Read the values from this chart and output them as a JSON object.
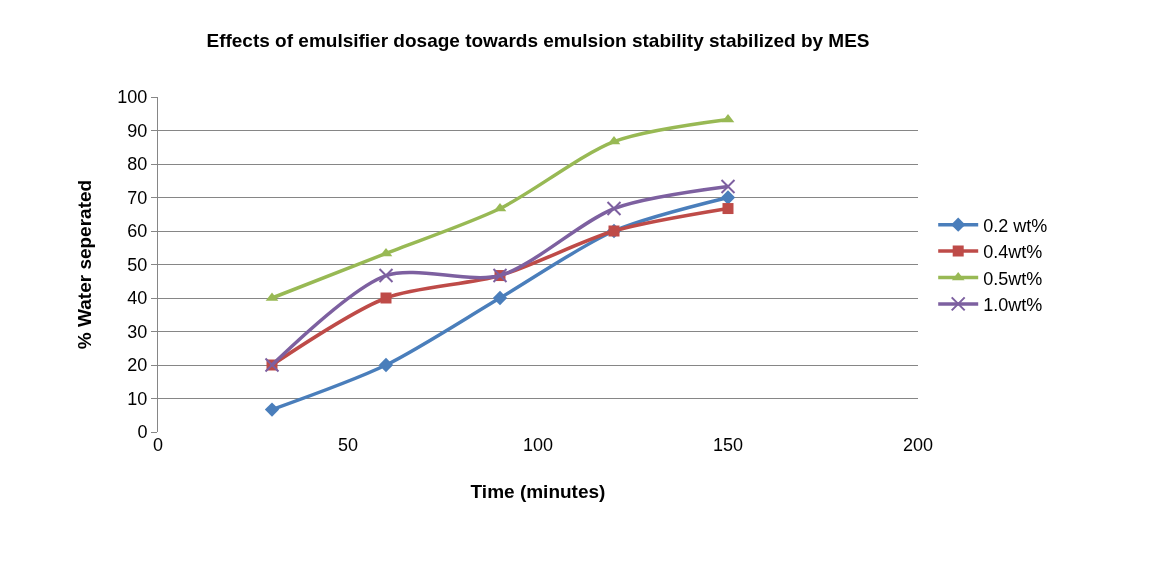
{
  "chart_data": {
    "type": "line",
    "title": "Effects of emulsifier dosage towards emulsion stability stabilized by MES",
    "xlabel": "Time (minutes)",
    "ylabel": "% Water seperated",
    "x": [
      30,
      60,
      90,
      120,
      150
    ],
    "series": [
      {
        "name": "0.2 wt%",
        "color": "#4a7ebb",
        "marker": "diamond",
        "values": [
          6.7,
          20,
          40,
          60,
          70
        ]
      },
      {
        "name": "0.4wt%",
        "color": "#be4b48",
        "marker": "square",
        "values": [
          20,
          40,
          46.7,
          60,
          66.7
        ]
      },
      {
        "name": "0.5wt%",
        "color": "#98b954",
        "marker": "triangle",
        "values": [
          40,
          53.3,
          66.7,
          86.7,
          93.3
        ]
      },
      {
        "name": "1.0wt%",
        "color": "#7d60a0",
        "marker": "cross",
        "values": [
          20,
          46.7,
          46.7,
          66.7,
          73.3
        ]
      }
    ],
    "xlim": [
      0,
      200
    ],
    "xticks": [
      0,
      50,
      100,
      150,
      200
    ],
    "ylim": [
      0,
      100
    ],
    "yticks": [
      0,
      10,
      20,
      30,
      40,
      50,
      60,
      70,
      80,
      90,
      100
    ],
    "grid": "y",
    "legend": "right",
    "line_style": "solid"
  }
}
